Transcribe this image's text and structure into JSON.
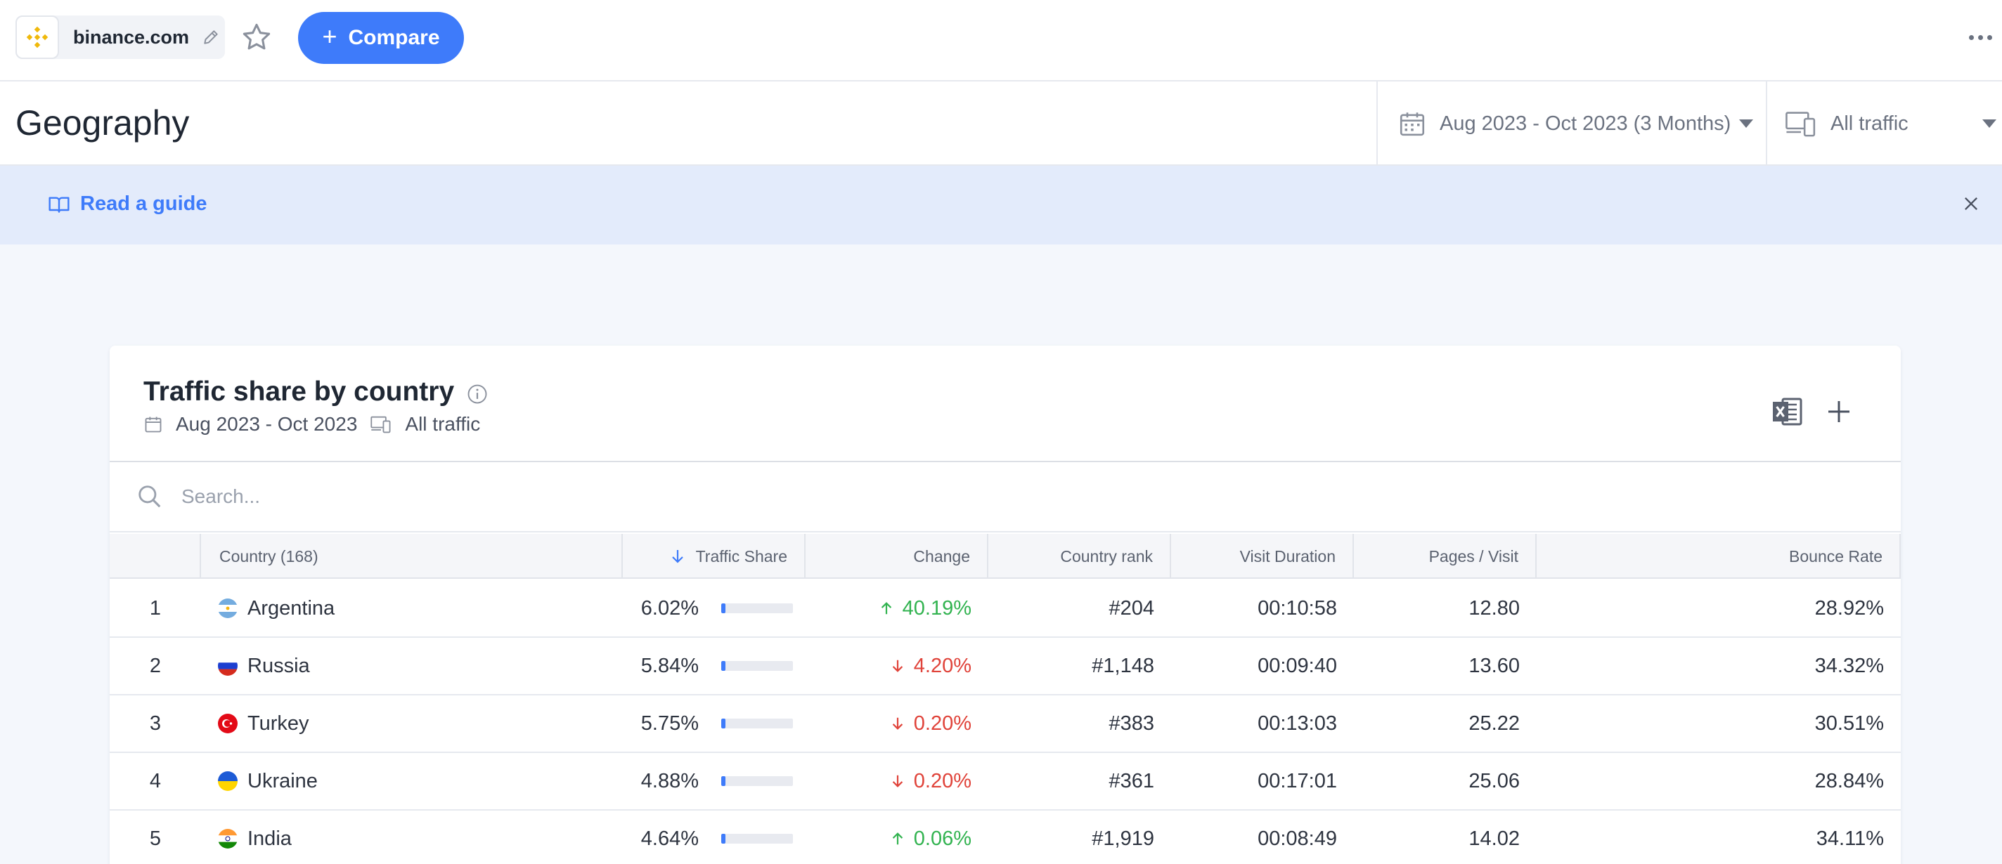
{
  "topbar": {
    "site_name": "binance.com",
    "compare_label": "Compare"
  },
  "header": {
    "title": "Geography",
    "date_range": "Aug 2023 - Oct 2023 (3 Months)",
    "traffic_type": "All traffic"
  },
  "guide": {
    "label": "Read a guide"
  },
  "card": {
    "title": "Traffic share by country",
    "date_range": "Aug 2023 - Oct 2023",
    "traffic_type": "All traffic",
    "search_placeholder": "Search..."
  },
  "table": {
    "columns": {
      "country": "Country (168)",
      "traffic_share": "Traffic Share",
      "change": "Change",
      "country_rank": "Country rank",
      "visit_duration": "Visit Duration",
      "pages_visit": "Pages / Visit",
      "bounce_rate": "Bounce Rate"
    },
    "rows": [
      {
        "rank": "1",
        "country": "Argentina",
        "share": "6.02%",
        "share_value": 0.0602,
        "change": "40.19%",
        "direction": "up",
        "country_rank": "#204",
        "duration": "00:10:58",
        "pages": "12.80",
        "bounce": "28.92%"
      },
      {
        "rank": "2",
        "country": "Russia",
        "share": "5.84%",
        "share_value": 0.0584,
        "change": "4.20%",
        "direction": "down",
        "country_rank": "#1,148",
        "duration": "00:09:40",
        "pages": "13.60",
        "bounce": "34.32%"
      },
      {
        "rank": "3",
        "country": "Turkey",
        "share": "5.75%",
        "share_value": 0.0575,
        "change": "0.20%",
        "direction": "down",
        "country_rank": "#383",
        "duration": "00:13:03",
        "pages": "25.22",
        "bounce": "30.51%"
      },
      {
        "rank": "4",
        "country": "Ukraine",
        "share": "4.88%",
        "share_value": 0.0488,
        "change": "0.20%",
        "direction": "down",
        "country_rank": "#361",
        "duration": "00:17:01",
        "pages": "25.06",
        "bounce": "28.84%"
      },
      {
        "rank": "5",
        "country": "India",
        "share": "4.64%",
        "share_value": 0.0464,
        "change": "0.06%",
        "direction": "up",
        "country_rank": "#1,919",
        "duration": "00:08:49",
        "pages": "14.02",
        "bounce": "34.11%"
      }
    ]
  },
  "colors": {
    "accent": "#3e7bfa",
    "positive": "#32b350",
    "negative": "#e0433a",
    "binance": "#f0b90b"
  }
}
